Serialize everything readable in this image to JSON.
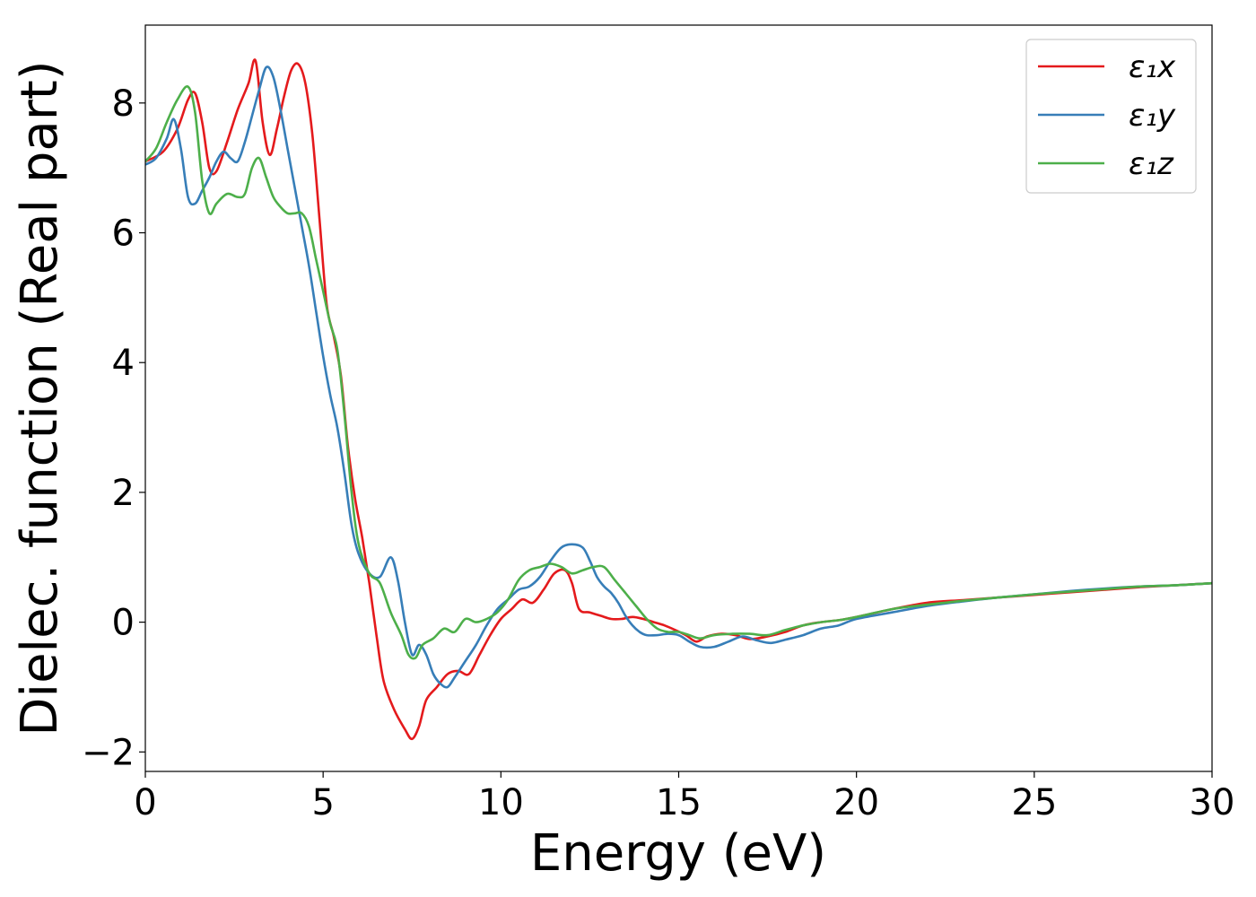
{
  "chart_data": {
    "type": "line",
    "xlabel": "Energy (eV)",
    "ylabel": "Dielec. function (Real part)",
    "xlim": [
      0,
      30
    ],
    "ylim": [
      -2.3,
      9.2
    ],
    "xticks": [
      0,
      5,
      10,
      15,
      20,
      25,
      30
    ],
    "xtick_labels": [
      "0",
      "5",
      "10",
      "15",
      "20",
      "25",
      "30"
    ],
    "yticks": [
      -2,
      0,
      2,
      4,
      6,
      8
    ],
    "ytick_labels": [
      "−2",
      "0",
      "2",
      "4",
      "6",
      "8"
    ],
    "grid": false,
    "legend": "top-right",
    "series": [
      {
        "name": "ε₁x",
        "color": "#e41a1c",
        "x": [
          0,
          0.5,
          0.9,
          1.2,
          1.4,
          1.6,
          1.8,
          2.0,
          2.3,
          2.6,
          2.9,
          3.1,
          3.3,
          3.5,
          3.7,
          3.9,
          4.1,
          4.3,
          4.5,
          4.7,
          4.9,
          5.1,
          5.3,
          5.5,
          5.7,
          5.9,
          6.1,
          6.3,
          6.5,
          6.7,
          7.0,
          7.3,
          7.5,
          7.7,
          7.9,
          8.2,
          8.5,
          8.8,
          9.1,
          9.4,
          9.7,
          10.0,
          10.3,
          10.6,
          10.9,
          11.2,
          11.5,
          11.8,
          12.0,
          12.2,
          12.5,
          12.8,
          13.1,
          13.4,
          13.7,
          14.0,
          14.3,
          14.6,
          14.9,
          15.2,
          15.5,
          15.8,
          16.2,
          16.6,
          17.0,
          17.5,
          18.0,
          18.5,
          19.0,
          19.5,
          20.0,
          21.0,
          22.0,
          23.0,
          24.0,
          25.0,
          26.0,
          27.0,
          28.0,
          29.0,
          30.0
        ],
        "y": [
          7.1,
          7.25,
          7.6,
          8.05,
          8.15,
          7.7,
          7.0,
          6.95,
          7.4,
          7.9,
          8.3,
          8.65,
          7.7,
          7.2,
          7.6,
          8.1,
          8.5,
          8.6,
          8.3,
          7.5,
          6.2,
          4.9,
          4.4,
          3.8,
          2.7,
          1.9,
          1.3,
          0.6,
          -0.2,
          -0.9,
          -1.35,
          -1.65,
          -1.8,
          -1.6,
          -1.2,
          -1.0,
          -0.8,
          -0.75,
          -0.8,
          -0.5,
          -0.2,
          0.05,
          0.2,
          0.35,
          0.3,
          0.5,
          0.75,
          0.8,
          0.6,
          0.2,
          0.15,
          0.1,
          0.05,
          0.05,
          0.08,
          0.05,
          0.0,
          -0.05,
          -0.12,
          -0.2,
          -0.3,
          -0.22,
          -0.18,
          -0.2,
          -0.26,
          -0.22,
          -0.15,
          -0.05,
          0.0,
          0.03,
          0.08,
          0.2,
          0.3,
          0.34,
          0.38,
          0.42,
          0.46,
          0.5,
          0.54,
          0.57,
          0.6
        ]
      },
      {
        "name": "ε₁y",
        "color": "#377eb8",
        "x": [
          0,
          0.3,
          0.6,
          0.8,
          1.0,
          1.2,
          1.4,
          1.6,
          1.8,
          2.0,
          2.2,
          2.4,
          2.6,
          2.8,
          3.0,
          3.2,
          3.4,
          3.6,
          3.8,
          4.0,
          4.2,
          4.4,
          4.6,
          4.8,
          5.0,
          5.2,
          5.4,
          5.6,
          5.8,
          6.0,
          6.3,
          6.6,
          6.9,
          7.1,
          7.3,
          7.5,
          7.7,
          7.9,
          8.1,
          8.3,
          8.5,
          8.7,
          9.0,
          9.3,
          9.6,
          9.9,
          10.2,
          10.5,
          10.8,
          11.1,
          11.4,
          11.7,
          12.0,
          12.3,
          12.5,
          12.7,
          12.9,
          13.1,
          13.3,
          13.5,
          13.7,
          13.9,
          14.1,
          14.4,
          14.7,
          15.0,
          15.3,
          15.6,
          16.0,
          16.4,
          16.8,
          17.2,
          17.6,
          18.0,
          18.5,
          19.0,
          19.5,
          20.0,
          21.0,
          22.0,
          23.0,
          24.0,
          25.0,
          26.0,
          27.0,
          28.0,
          29.0,
          30.0
        ],
        "y": [
          7.05,
          7.15,
          7.45,
          7.75,
          7.3,
          6.55,
          6.45,
          6.65,
          6.85,
          7.1,
          7.25,
          7.15,
          7.1,
          7.4,
          7.8,
          8.2,
          8.55,
          8.4,
          7.9,
          7.3,
          6.7,
          6.1,
          5.5,
          4.8,
          4.1,
          3.5,
          3.0,
          2.3,
          1.5,
          1.05,
          0.75,
          0.7,
          1.0,
          0.65,
          0.0,
          -0.5,
          -0.35,
          -0.5,
          -0.8,
          -0.95,
          -1.0,
          -0.85,
          -0.6,
          -0.35,
          -0.05,
          0.2,
          0.35,
          0.5,
          0.55,
          0.7,
          0.95,
          1.15,
          1.2,
          1.15,
          0.95,
          0.7,
          0.55,
          0.45,
          0.3,
          0.1,
          -0.05,
          -0.15,
          -0.2,
          -0.2,
          -0.18,
          -0.2,
          -0.3,
          -0.38,
          -0.38,
          -0.3,
          -0.22,
          -0.28,
          -0.32,
          -0.27,
          -0.2,
          -0.1,
          -0.05,
          0.05,
          0.15,
          0.25,
          0.32,
          0.38,
          0.43,
          0.48,
          0.52,
          0.55,
          0.57,
          0.6
        ]
      },
      {
        "name": "ε₁z",
        "color": "#4daf4a",
        "x": [
          0,
          0.3,
          0.6,
          0.9,
          1.2,
          1.4,
          1.6,
          1.8,
          2.0,
          2.3,
          2.6,
          2.8,
          3.0,
          3.2,
          3.4,
          3.6,
          3.8,
          4.0,
          4.2,
          4.4,
          4.6,
          4.8,
          5.0,
          5.2,
          5.4,
          5.6,
          5.8,
          6.0,
          6.3,
          6.6,
          6.9,
          7.2,
          7.4,
          7.6,
          7.8,
          8.1,
          8.4,
          8.7,
          9.0,
          9.3,
          9.6,
          9.9,
          10.2,
          10.5,
          10.8,
          11.1,
          11.4,
          11.7,
          12.0,
          12.3,
          12.6,
          12.9,
          13.2,
          13.5,
          13.8,
          14.1,
          14.4,
          14.7,
          15.0,
          15.3,
          15.6,
          16.0,
          16.5,
          17.0,
          17.5,
          18.0,
          18.5,
          19.0,
          19.5,
          20.0,
          21.0,
          22.0,
          23.0,
          24.0,
          25.0,
          26.0,
          27.0,
          28.0,
          29.0,
          30.0
        ],
        "y": [
          7.1,
          7.3,
          7.7,
          8.05,
          8.25,
          7.85,
          6.8,
          6.3,
          6.45,
          6.6,
          6.55,
          6.6,
          7.0,
          7.15,
          6.85,
          6.55,
          6.4,
          6.3,
          6.3,
          6.3,
          6.1,
          5.6,
          5.1,
          4.6,
          4.2,
          3.2,
          2.0,
          1.2,
          0.75,
          0.6,
          0.15,
          -0.2,
          -0.5,
          -0.55,
          -0.35,
          -0.25,
          -0.1,
          -0.15,
          0.05,
          0.0,
          0.05,
          0.15,
          0.35,
          0.65,
          0.8,
          0.85,
          0.9,
          0.85,
          0.75,
          0.8,
          0.85,
          0.85,
          0.65,
          0.45,
          0.25,
          0.05,
          -0.1,
          -0.15,
          -0.15,
          -0.2,
          -0.25,
          -0.2,
          -0.18,
          -0.18,
          -0.2,
          -0.12,
          -0.05,
          0.0,
          0.03,
          0.08,
          0.2,
          0.27,
          0.33,
          0.38,
          0.43,
          0.47,
          0.51,
          0.55,
          0.57,
          0.6
        ]
      }
    ]
  }
}
